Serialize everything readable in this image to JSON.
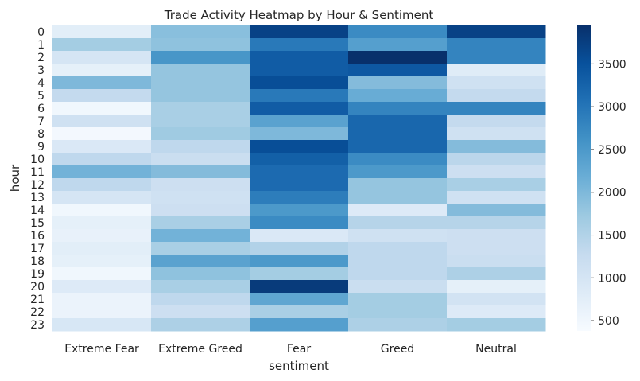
{
  "chart_data": {
    "type": "heatmap",
    "title": "Trade Activity Heatmap by Hour & Sentiment",
    "xlabel": "sentiment",
    "ylabel": "hour",
    "columns": [
      "Extreme Fear",
      "Extreme Greed",
      "Fear",
      "Greed",
      "Neutral"
    ],
    "rows": [
      "0",
      "1",
      "2",
      "3",
      "4",
      "5",
      "6",
      "7",
      "8",
      "9",
      "10",
      "11",
      "12",
      "13",
      "14",
      "15",
      "16",
      "17",
      "18",
      "19",
      "20",
      "21",
      "22",
      "23"
    ],
    "values": [
      [
        750,
        1900,
        3700,
        2700,
        3700
      ],
      [
        1650,
        1850,
        2950,
        2400,
        2800
      ],
      [
        1000,
        2550,
        3350,
        3950,
        2800
      ],
      [
        700,
        1800,
        3350,
        3400,
        800
      ],
      [
        2000,
        1800,
        3550,
        1950,
        1100
      ],
      [
        1300,
        1800,
        2950,
        2200,
        1300
      ],
      [
        500,
        1600,
        3350,
        2800,
        2800
      ],
      [
        1100,
        1600,
        2350,
        3200,
        1300
      ],
      [
        450,
        1700,
        2000,
        3200,
        1100
      ],
      [
        900,
        1350,
        3550,
        3200,
        1950
      ],
      [
        1350,
        1200,
        3300,
        2700,
        1400
      ],
      [
        2100,
        1950,
        3150,
        2500,
        1150
      ],
      [
        1350,
        1150,
        3150,
        1800,
        1600
      ],
      [
        1000,
        1100,
        2900,
        1800,
        1100
      ],
      [
        500,
        1150,
        2500,
        850,
        1950
      ],
      [
        700,
        1600,
        2700,
        1450,
        1450
      ],
      [
        650,
        2100,
        900,
        1100,
        1150
      ],
      [
        750,
        1600,
        1500,
        1350,
        1150
      ],
      [
        700,
        2350,
        2500,
        1350,
        1200
      ],
      [
        500,
        1850,
        1650,
        1350,
        1550
      ],
      [
        850,
        1600,
        3800,
        1200,
        700
      ],
      [
        600,
        1350,
        2300,
        1650,
        1050
      ],
      [
        600,
        1150,
        1600,
        1650,
        850
      ],
      [
        950,
        1550,
        2400,
        1550,
        1650
      ]
    ],
    "vmin": 380,
    "vmax": 3950,
    "colorbar_ticks": [
      500,
      1000,
      1500,
      2000,
      2500,
      3000,
      3500
    ],
    "colormap": [
      "#f7fbff",
      "#deebf7",
      "#c6dbef",
      "#9ecae1",
      "#6baed6",
      "#4292c6",
      "#2171b5",
      "#08519c",
      "#08306b"
    ],
    "grid": false,
    "legend": "colorbar-right"
  }
}
